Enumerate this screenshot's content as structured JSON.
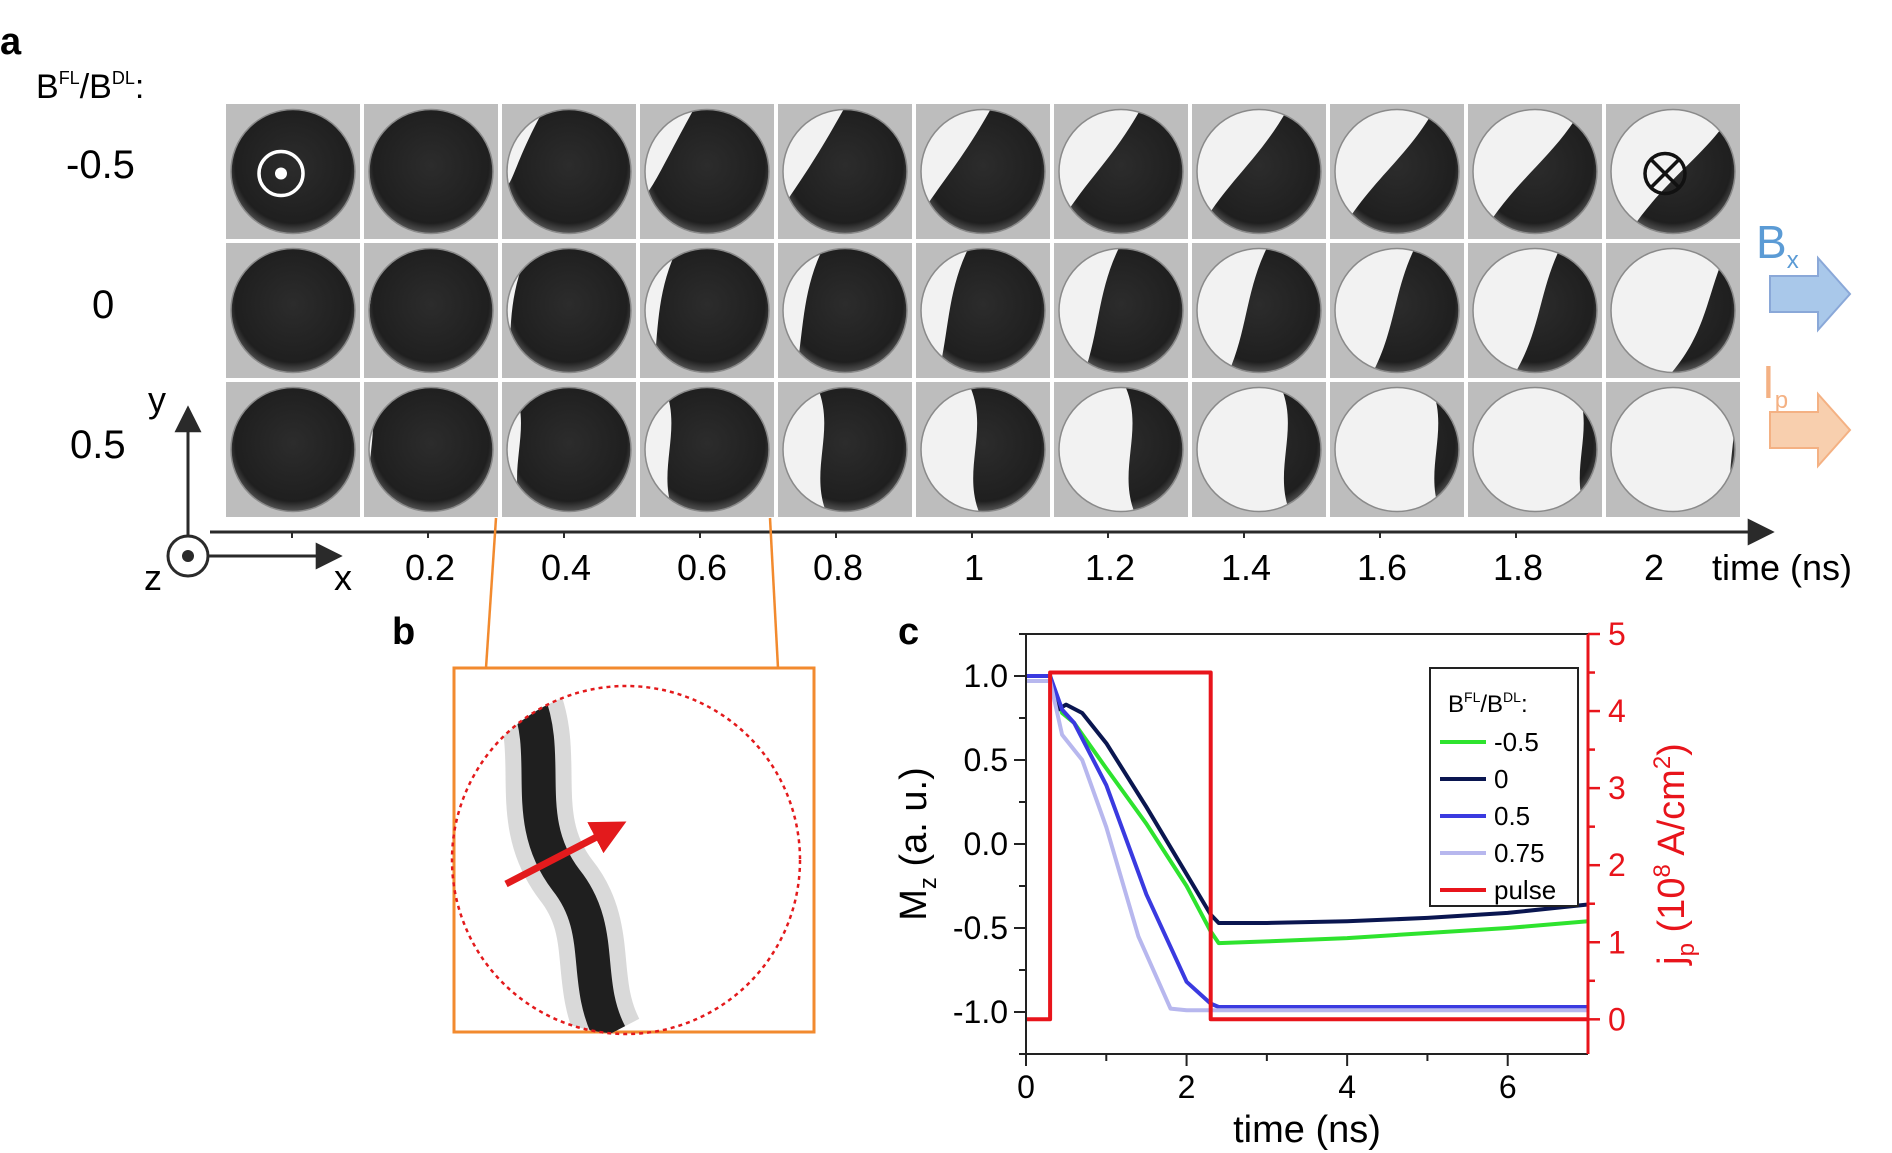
{
  "panel_a": {
    "label": "a",
    "row_header_main": "B",
    "row_header_sup1": "FL",
    "row_header_mid": "/B",
    "row_header_sup2": "DL",
    "row_header_tail": ":",
    "row_labels": [
      "-0.5",
      "0",
      "0.5"
    ],
    "time_ticks": [
      "0.2",
      "0.4",
      "0.6",
      "0.8",
      "1",
      "1.2",
      "1.4",
      "1.6",
      "1.8",
      "2"
    ],
    "time_axis_label": "time (ns)",
    "axis_x": "x",
    "axis_y": "y",
    "axis_z": "z",
    "field_label": "B",
    "field_sub": "x",
    "current_label": "I",
    "current_sub": "p",
    "field_color": "#5b9bd5",
    "field_fill": "#a9c8ea",
    "current_color": "#f4b183",
    "current_fill": "#f8cfae",
    "grid_background": "#bdbdbd",
    "state_up_symbol": "out-of-plane-dot",
    "state_down_symbol": "into-plane-cross",
    "snapshots": {
      "description_note": "white_fraction per snapshot, columns = time 0..2 ns in 0.2 steps",
      "rows": [
        {
          "ratio": "-0.5",
          "white_fraction": [
            0.0,
            0.02,
            0.12,
            0.2,
            0.28,
            0.34,
            0.42,
            0.48,
            0.54,
            0.6,
            0.7
          ]
        },
        {
          "ratio": "0",
          "white_fraction": [
            0.0,
            0.02,
            0.06,
            0.14,
            0.2,
            0.26,
            0.36,
            0.44,
            0.52,
            0.58,
            0.82
          ]
        },
        {
          "ratio": "0.5",
          "white_fraction": [
            0.0,
            0.02,
            0.1,
            0.2,
            0.32,
            0.44,
            0.58,
            0.72,
            0.82,
            0.88,
            0.98
          ]
        }
      ]
    }
  },
  "panel_b": {
    "label": "b",
    "frame_color": "#f28a2e",
    "boundary_color": "#e31a1c",
    "arrow_color": "#e31a1c"
  },
  "panel_c": {
    "label": "c",
    "legend_title_main": "B",
    "legend_title_sup1": "FL",
    "legend_title_mid": "/B",
    "legend_title_sup2": "DL",
    "legend_title_tail": ":"
  },
  "chart_data": {
    "type": "line",
    "xlabel": "time (ns)",
    "ylabel_left": "M",
    "ylabel_left_sub": "z",
    "ylabel_left_unit": " (a. u.)",
    "ylabel_right": "j",
    "ylabel_right_sub": "p",
    "ylabel_right_unit_a": " (10",
    "ylabel_right_unit_sup": "8",
    "ylabel_right_unit_b": " A/cm",
    "ylabel_right_unit_sup2": "2",
    "ylabel_right_unit_c": ")",
    "xlim": [
      0,
      7
    ],
    "ylim_left": [
      -1.25,
      1.25
    ],
    "ylim_right": [
      -0.45,
      5
    ],
    "x_ticks": [
      0,
      2,
      4,
      6
    ],
    "x_tick_labels": [
      "0",
      "2",
      "4",
      "6"
    ],
    "y_left_ticks": [
      1.0,
      0.5,
      0.0,
      -0.5,
      -1.0
    ],
    "y_left_tick_labels": [
      "1.0",
      "0.5",
      "0.0",
      "-0.5",
      "-1.0"
    ],
    "y_right_ticks": [
      0,
      1,
      2,
      3,
      4,
      5
    ],
    "y_right_tick_labels": [
      "0",
      "1",
      "2",
      "3",
      "4",
      "5"
    ],
    "right_axis_color": "#e8141b",
    "legend_position": "top-right",
    "grid": false,
    "series": [
      {
        "name": "-0.5",
        "color": "#2ee32e",
        "axis": "left",
        "x": [
          0,
          0.3,
          0.45,
          0.6,
          1.0,
          1.5,
          2.0,
          2.3,
          2.4,
          3.0,
          4.0,
          5.0,
          6.0,
          7.0
        ],
        "y": [
          1.0,
          1.0,
          0.78,
          0.72,
          0.45,
          0.12,
          -0.25,
          -0.52,
          -0.59,
          -0.58,
          -0.56,
          -0.53,
          -0.5,
          -0.46
        ]
      },
      {
        "name": "0",
        "color": "#0a1650",
        "axis": "left",
        "x": [
          0,
          0.3,
          0.4,
          0.5,
          0.7,
          1.0,
          1.5,
          2.0,
          2.3,
          2.4,
          3.0,
          4.0,
          5.0,
          6.0,
          7.0
        ],
        "y": [
          1.0,
          1.0,
          0.8,
          0.83,
          0.78,
          0.6,
          0.22,
          -0.18,
          -0.42,
          -0.47,
          -0.47,
          -0.46,
          -0.44,
          -0.41,
          -0.36
        ]
      },
      {
        "name": "0.5",
        "color": "#3a3ae0",
        "axis": "left",
        "x": [
          0,
          0.3,
          0.45,
          0.6,
          1.0,
          1.5,
          2.0,
          2.3,
          2.4,
          3.0,
          4.0,
          5.0,
          6.0,
          7.0
        ],
        "y": [
          1.0,
          1.0,
          0.8,
          0.72,
          0.35,
          -0.3,
          -0.82,
          -0.95,
          -0.97,
          -0.97,
          -0.97,
          -0.97,
          -0.97,
          -0.97
        ]
      },
      {
        "name": "0.75",
        "color": "#b7b7ee",
        "axis": "left",
        "x": [
          0,
          0.3,
          0.45,
          0.7,
          1.0,
          1.4,
          1.8,
          2.0,
          2.3,
          2.4,
          3.0,
          7.0
        ],
        "y": [
          0.97,
          0.97,
          0.65,
          0.5,
          0.1,
          -0.55,
          -0.98,
          -0.99,
          -0.99,
          -0.99,
          -0.99,
          -0.99
        ]
      },
      {
        "name": "pulse",
        "color": "#e8141b",
        "axis": "right",
        "x": [
          0,
          0.3,
          0.3,
          2.3,
          2.3,
          7.0
        ],
        "y": [
          0,
          0,
          4.5,
          4.5,
          0,
          0
        ]
      }
    ]
  }
}
